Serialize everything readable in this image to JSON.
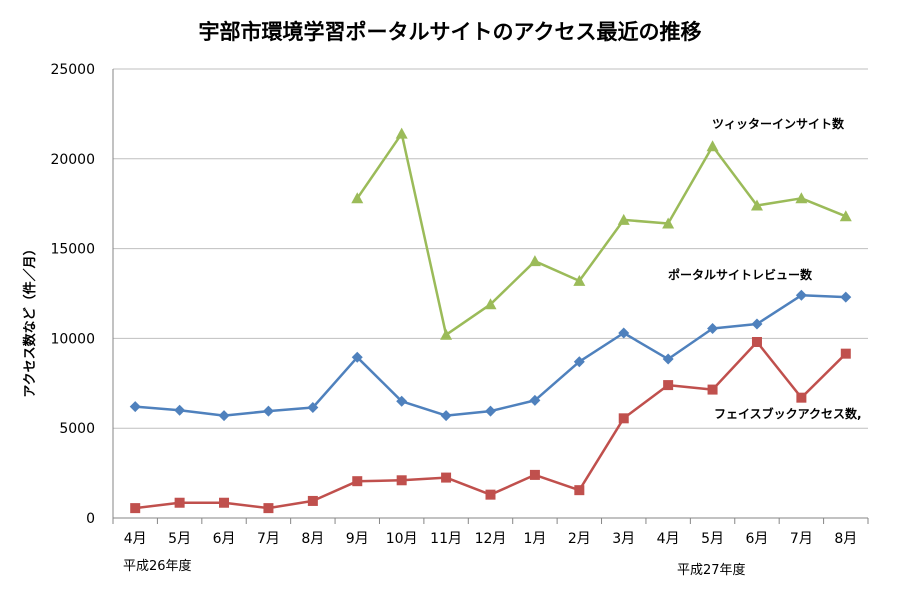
{
  "chart_data": {
    "type": "line",
    "title": "宇部市環境学習ポータルサイトのアクセス最近の推移",
    "ylabel": "アクセス数など（件／月）",
    "xlabel": "",
    "ylim": [
      0,
      25000
    ],
    "yticks": [
      0,
      5000,
      10000,
      15000,
      20000,
      25000
    ],
    "grid": true,
    "legend": "inline labels next to lines",
    "categories": [
      "4月",
      "5月",
      "6月",
      "7月",
      "8月",
      "9月",
      "10月",
      "11月",
      "12月",
      "1月",
      "2月",
      "3月",
      "4月",
      "5月",
      "6月",
      "7月",
      "8月"
    ],
    "period_labels": [
      "平成26年度",
      "平成27年度"
    ],
    "series": [
      {
        "name": "ツィッターインサイト数",
        "color": "#9bbb59",
        "marker": "triangle",
        "values": [
          null,
          null,
          null,
          null,
          null,
          17800,
          21400,
          10200,
          11900,
          14300,
          13200,
          16600,
          16400,
          20700,
          17400,
          17800,
          16800
        ]
      },
      {
        "name": "ポータルサイトレビュー数",
        "color": "#4f81bd",
        "marker": "diamond",
        "values": [
          6200,
          6000,
          5700,
          5950,
          6150,
          8950,
          6500,
          5700,
          5950,
          6550,
          8700,
          10300,
          8850,
          10550,
          10800,
          12400,
          12300
        ]
      },
      {
        "name": "フェイスブックアクセス数,",
        "color": "#c0504d",
        "marker": "square",
        "values": [
          550,
          850,
          850,
          550,
          950,
          2050,
          2100,
          2250,
          1300,
          2400,
          1550,
          5550,
          7400,
          7150,
          9800,
          6700,
          9150
        ]
      }
    ]
  }
}
